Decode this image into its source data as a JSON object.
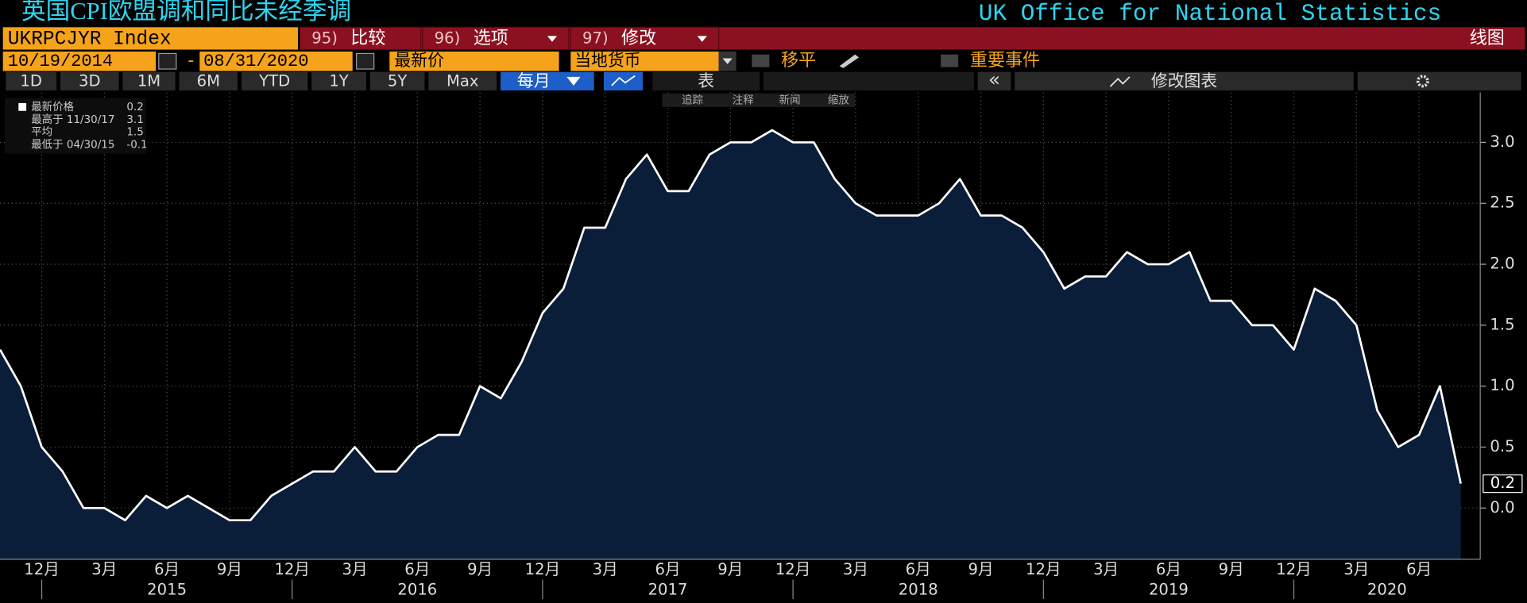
{
  "header": {
    "title": "英国CPI欧盟调和同比未经季调",
    "source": "UK Office for National Statistics"
  },
  "toolbar": {
    "ticker": "UKRPCJYR Index",
    "buttons": [
      {
        "num": "95)",
        "label": "比较"
      },
      {
        "num": "96)",
        "label": "选项"
      },
      {
        "num": "97)",
        "label": "修改"
      }
    ],
    "chart_kind": "线图"
  },
  "settings": {
    "start_date": "10/19/2014",
    "date_sep": "-",
    "end_date": "08/31/2020",
    "price": "最新价",
    "currency": "当地货币",
    "smooth": "移平",
    "events": "重要事件"
  },
  "periods": [
    "1D",
    "3D",
    "1M",
    "6M",
    "YTD",
    "1Y",
    "5Y",
    "Max"
  ],
  "frequency": "每月",
  "table": "表",
  "collapse": "«",
  "edit_chart": "修改图表",
  "tools": [
    "追踪",
    "注释",
    "新闻",
    "缩放"
  ],
  "legend_stats": [
    {
      "label": "最新价格",
      "value": "0.2"
    },
    {
      "label": "最高于 11/30/17",
      "value": "3.1"
    },
    {
      "label": "平均",
      "value": "1.5"
    },
    {
      "label": "最低于 04/30/15",
      "value": "-0.1"
    }
  ],
  "chart_data": {
    "type": "area",
    "color": "#ffffff",
    "fill": "#0a1e3a",
    "categories": [
      null,
      null,
      "12月",
      null,
      null,
      "3月",
      null,
      null,
      "6月",
      null,
      null,
      "9月",
      null,
      null,
      "12月",
      null,
      null,
      "3月",
      null,
      null,
      "6月",
      null,
      null,
      "9月",
      null,
      null,
      "12月",
      null,
      null,
      "3月",
      null,
      null,
      "6月",
      null,
      null,
      "9月",
      null,
      null,
      "12月",
      null,
      null,
      "3月",
      null,
      null,
      "6月",
      null,
      null,
      "9月",
      null,
      null,
      "12月",
      null,
      null,
      "3月",
      null,
      null,
      "6月",
      null,
      null,
      "9月",
      null,
      null,
      "12月",
      null,
      null,
      "3月",
      null,
      null,
      "6月",
      null,
      null
    ],
    "years": [
      "2015",
      "2016",
      "2017",
      "2018",
      "2019",
      "2020"
    ],
    "values": [
      1.3,
      1.0,
      0.5,
      0.3,
      0.0,
      0.0,
      -0.1,
      0.1,
      0.0,
      0.1,
      0.0,
      -0.1,
      -0.1,
      0.1,
      0.2,
      0.3,
      0.3,
      0.5,
      0.3,
      0.3,
      0.5,
      0.6,
      0.6,
      1.0,
      0.9,
      1.2,
      1.6,
      1.8,
      2.3,
      2.3,
      2.7,
      2.9,
      2.6,
      2.6,
      2.9,
      3.0,
      3.0,
      3.1,
      3.0,
      3.0,
      2.7,
      2.5,
      2.4,
      2.4,
      2.4,
      2.5,
      2.7,
      2.4,
      2.4,
      2.3,
      2.1,
      1.8,
      1.9,
      1.9,
      2.1,
      2.0,
      2.0,
      2.1,
      1.7,
      1.7,
      1.5,
      1.5,
      1.3,
      1.8,
      1.7,
      1.5,
      0.8,
      0.5,
      0.6,
      1.0,
      0.2
    ],
    "ylim": [
      -0.42,
      3.41
    ],
    "yticks": [
      {
        "value": 0,
        "label": "0.0"
      },
      0.5,
      {
        "value": 1,
        "label": "1.0"
      },
      1.5,
      {
        "value": 2,
        "label": "2.0"
      },
      2.5,
      {
        "value": 3,
        "label": "3.0"
      }
    ],
    "grid": true
  }
}
